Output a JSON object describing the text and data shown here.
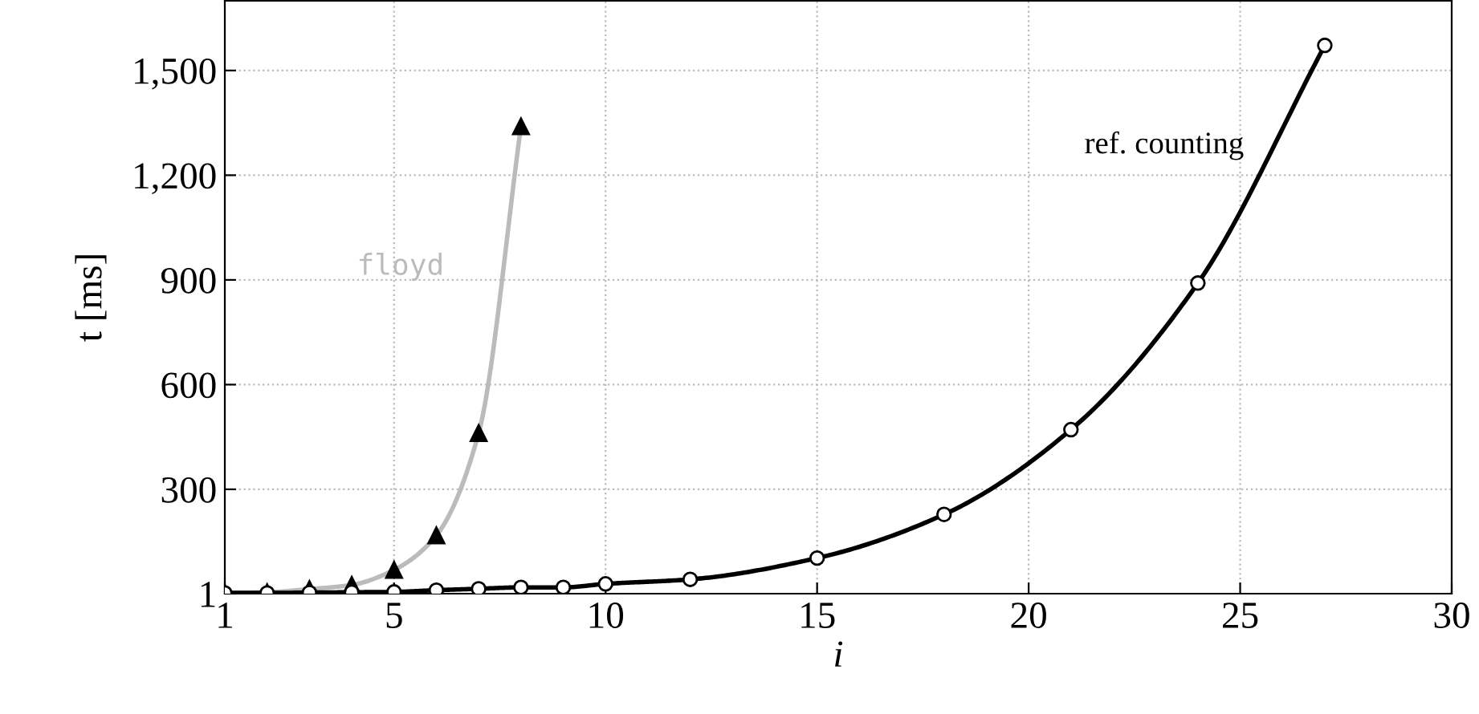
{
  "chart_data": {
    "type": "line",
    "xlabel": "i",
    "ylabel": "t [ms]",
    "series": [
      {
        "name": "floyd",
        "color": "#bbbbbb",
        "marker": "triangle",
        "x": [
          1,
          2,
          3,
          4,
          5,
          6,
          7,
          8
        ],
        "values": [
          3,
          5,
          14,
          26,
          69,
          168,
          461,
          1340
        ]
      },
      {
        "name": "ref. counting",
        "color": "#000000",
        "marker": "circle",
        "x": [
          1,
          2,
          3,
          4,
          5,
          6,
          7,
          8,
          9,
          10,
          12,
          15,
          18,
          21,
          24,
          27
        ],
        "values": [
          3,
          3,
          4,
          5,
          6,
          11,
          15,
          19,
          19,
          29,
          42,
          103,
          228,
          471,
          891,
          1572
        ]
      }
    ],
    "xlim": [
      1,
      30
    ],
    "xticks": [
      1,
      5,
      10,
      15,
      20,
      25,
      30
    ],
    "ylim": [
      1,
      1700
    ],
    "yticks": [
      1,
      300,
      600,
      900,
      {
        "value": 1200,
        "label": "1,200"
      },
      {
        "value": 1500,
        "label": "1,500"
      }
    ],
    "grid": true,
    "legend": false,
    "line_style": "solid"
  }
}
